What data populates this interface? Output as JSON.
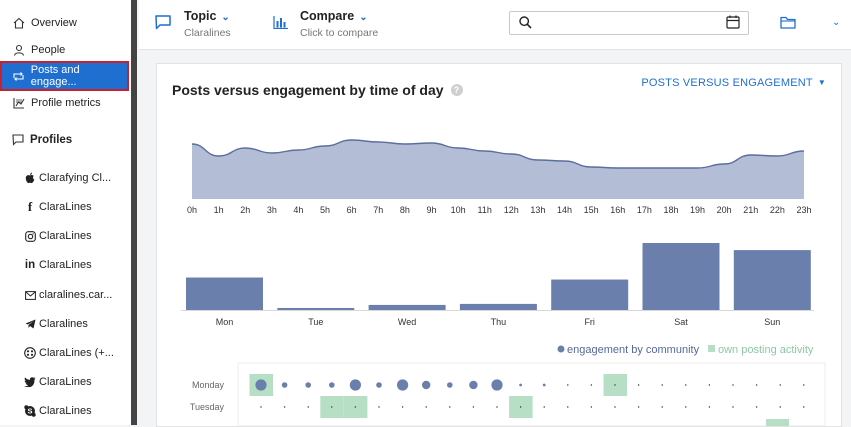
{
  "sidebar": {
    "nav": [
      {
        "label": "Overview",
        "icon": "home-icon"
      },
      {
        "label": "People",
        "icon": "person-icon"
      },
      {
        "label": "Posts and engage...",
        "icon": "repost-icon",
        "active": true
      },
      {
        "label": "Profile metrics",
        "icon": "chart-icon"
      }
    ],
    "profiles_label": "Profiles",
    "profiles": [
      {
        "label": "Clarafying Cl...",
        "icon": "apple-icon"
      },
      {
        "label": "ClaraLines",
        "icon": "facebook-icon"
      },
      {
        "label": "ClaraLines",
        "icon": "instagram-icon"
      },
      {
        "label": "ClaraLines",
        "icon": "linkedin-icon"
      },
      {
        "label": "claralines.car...",
        "icon": "mail-icon"
      },
      {
        "label": "Claralines",
        "icon": "telegram-icon"
      },
      {
        "label": "ClaraLines (+...",
        "icon": "multi-network-icon"
      },
      {
        "label": "ClaraLines",
        "icon": "twitter-icon"
      },
      {
        "label": "ClaraLines",
        "icon": "skype-icon"
      }
    ]
  },
  "topbar": {
    "topic_title": "Topic",
    "topic_sub": "Claralines",
    "compare_title": "Compare",
    "compare_sub": "Click to compare",
    "search_value": ""
  },
  "card": {
    "title": "Posts versus engagement by time of day",
    "view_selector": "POSTS VERSUS ENGAGEMENT"
  },
  "colors": {
    "accent": "#1f6fd1",
    "engagement": "#6a7fab",
    "area_fill": "#b3bdd6",
    "posting": "#b7dfc6",
    "active_outline": "#c8202f"
  },
  "chart_data": [
    {
      "type": "area",
      "x": [
        "0h",
        "1h",
        "2h",
        "3h",
        "4h",
        "5h",
        "6h",
        "7h",
        "8h",
        "9h",
        "10h",
        "11h",
        "12h",
        "13h",
        "14h",
        "15h",
        "16h",
        "17h",
        "18h",
        "19h",
        "20h",
        "21h",
        "22h",
        "23h"
      ],
      "values": [
        55,
        43,
        51,
        46,
        49,
        53,
        59,
        57,
        55,
        56,
        51,
        48,
        45,
        39,
        38,
        32,
        31,
        31,
        31,
        31,
        35,
        44,
        43,
        48
      ],
      "ylim": [
        0,
        100
      ]
    },
    {
      "type": "bar",
      "categories": [
        "Mon",
        "Tue",
        "Wed",
        "Thu",
        "Fri",
        "Sat",
        "Sun"
      ],
      "values": [
        32,
        2,
        5,
        6,
        30,
        66,
        59
      ],
      "ylim": [
        0,
        66
      ]
    },
    {
      "type": "scatter",
      "legend": [
        "engagement by community",
        "own posting activity"
      ],
      "rows": [
        "Monday",
        "Tuesday"
      ],
      "engagement": [
        [
          4,
          2,
          2,
          2,
          4,
          2,
          4,
          3,
          2,
          3,
          4,
          1,
          1,
          0.5,
          0.5,
          0.5,
          0.5,
          0.5,
          0.5,
          0.5,
          0.5,
          0.5,
          0.5,
          0.5
        ],
        [
          0.5,
          0.5,
          0.5,
          0.5,
          0.5,
          0.5,
          0.5,
          0.5,
          0.5,
          0.5,
          0.5,
          0.5,
          0.5,
          0.5,
          0.5,
          0.5,
          0.5,
          0.5,
          0.5,
          0.5,
          0.5,
          0.5,
          0.5,
          0.5
        ]
      ],
      "posting": [
        [
          1,
          0,
          0,
          0,
          0,
          0,
          0,
          0,
          0,
          0,
          0,
          0,
          0,
          0,
          0,
          1,
          0,
          0,
          0,
          0,
          0,
          0,
          0,
          0
        ],
        [
          0,
          0,
          0,
          1,
          1,
          0,
          0,
          0,
          0,
          0,
          0,
          1,
          0,
          0,
          0,
          0,
          0,
          0,
          0,
          0,
          0,
          0,
          0,
          0
        ]
      ]
    }
  ]
}
